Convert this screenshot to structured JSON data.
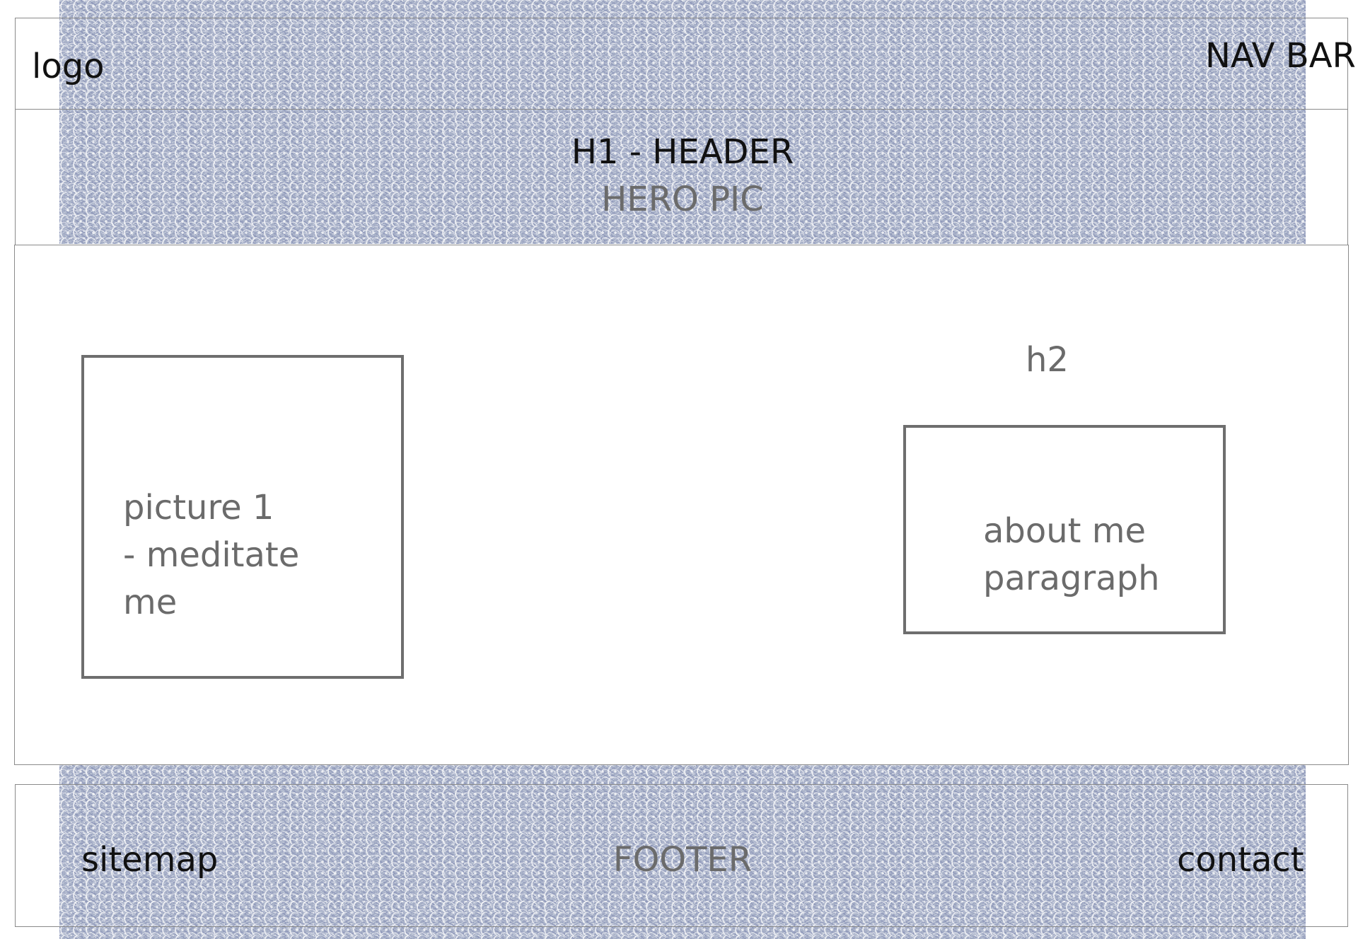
{
  "nav": {
    "logo": "logo",
    "nav_bar": "NAV BAR"
  },
  "header": {
    "h1": "H1 - HEADER",
    "hero": "HERO PIC"
  },
  "main": {
    "h2": "h2",
    "picture_box": "picture 1\n- meditate\nme",
    "about_box": "about me\nparagraph"
  },
  "footer": {
    "sitemap": "sitemap",
    "label": "FOOTER",
    "contact": "contact"
  },
  "colors": {
    "text_dark": "#111111",
    "text_gray": "#6b6b6b",
    "box_border": "#6e6e6e",
    "frame_border": "#8a8a8a",
    "texture_base": "#aab3c9"
  },
  "icons": []
}
